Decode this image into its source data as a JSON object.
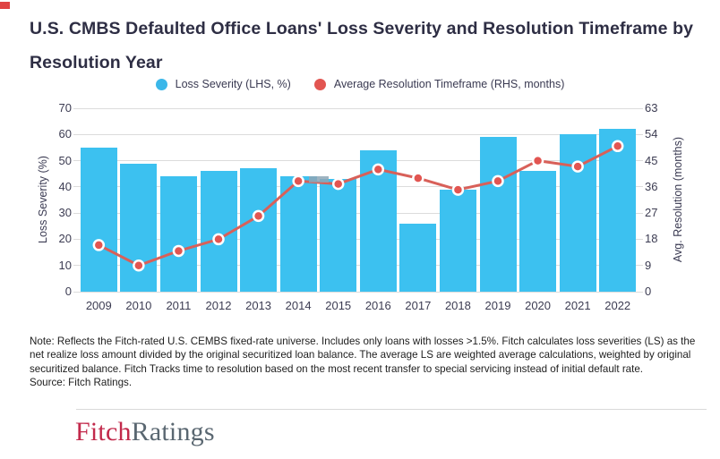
{
  "page": {
    "title_lines": [
      "U.S. CMBS Defaulted Office Loans' Loss Severity and Resolution Timeframe by",
      "Resolution Year"
    ]
  },
  "legend": {
    "items": [
      {
        "label": "Loss Severity (LHS, %)",
        "color": "#3bb7e9"
      },
      {
        "label": "Average Resolution Timeframe (RHS, months)",
        "color": "#e25551"
      }
    ]
  },
  "chart_data": {
    "type": "combo-bar-line",
    "title": "U.S. CMBS Defaulted Office Loans' Loss Severity and Resolution Timeframe by Resolution Year",
    "categories": [
      "2009",
      "2010",
      "2011",
      "2012",
      "2013",
      "2014",
      "2015",
      "2016",
      "2017",
      "2018",
      "2019",
      "2020",
      "2021",
      "2022"
    ],
    "series": [
      {
        "name": "Loss Severity (LHS, %)",
        "type": "bar",
        "axis": "left",
        "unit": "%",
        "color": "#3cc1f0",
        "values": [
          55,
          49,
          44,
          46,
          47,
          44,
          43,
          54,
          26,
          39,
          59,
          46,
          60,
          62
        ]
      },
      {
        "name": "Average Resolution Timeframe (RHS, months)",
        "type": "line",
        "axis": "right",
        "unit": "months",
        "color": "#e25551",
        "line_color": "#d86059",
        "values": [
          16,
          9,
          14,
          18,
          26,
          38,
          37,
          42,
          39,
          35,
          38,
          45,
          43,
          50
        ]
      }
    ],
    "left_axis": {
      "title": "Loss Severity (%)",
      "range": [
        0,
        70
      ],
      "ticks": [
        0,
        10,
        20,
        30,
        40,
        50,
        60,
        70
      ]
    },
    "right_axis": {
      "title": "Avg. Resolution (months)",
      "range": [
        0,
        63
      ],
      "ticks": [
        0,
        9,
        18,
        27,
        36,
        45,
        54,
        63
      ]
    },
    "grid": true,
    "legend_position": "top"
  },
  "notes": {
    "note": "Note: Reflects the Fitch-rated U.S. CEMBS fixed-rate universe. Includes only loans with losses >1.5%. Fitch calculates loss severities (LS) as the net realize loss amount divided by the original securitized loan balance. The average LS are weighted average calculations, weighted by original securitized balance. Fitch Tracks time to resolution based on the most recent transfer to special servicing instead of initial default rate.",
    "source": "Source: Fitch Ratings."
  },
  "footer": {
    "logo_fitch": "Fitch",
    "logo_ratings": "Ratings"
  }
}
